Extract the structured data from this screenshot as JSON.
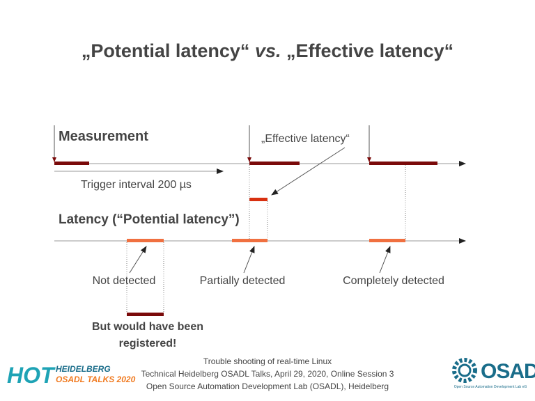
{
  "title": {
    "part1": "„Potential latency“",
    "vs": "vs.",
    "part2": "„Effective latency“"
  },
  "diagram": {
    "measurement": "Measurement",
    "effective_latency": "„Effective latency“",
    "trigger_interval": "Trigger interval 200 µs",
    "latency": "Latency (“Potential latency”)",
    "not_detected": "Not detected",
    "partially_detected": "Partially detected",
    "completely_detected": "Completely detected",
    "note": [
      "But would have been",
      "registered!"
    ]
  },
  "footer": [
    "Trouble shooting of real-time Linux",
    "Technical Heidelberg OSADL Talks, April 29, 2020, Online Session 3",
    "Open Source Automation Development Lab (OSADL), Heidelberg"
  ],
  "logo_left": {
    "big": "HOT",
    "line1": "HEIDELBERG",
    "line2": "OSADL TALKS 2020"
  },
  "logo_right": {
    "name": "OSADL",
    "tagline": "Open Source Automation Development Lab eG"
  }
}
